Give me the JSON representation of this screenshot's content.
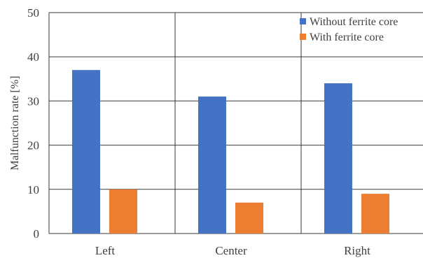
{
  "chart_data": {
    "type": "bar",
    "categories": [
      "Left",
      "Center",
      "Right"
    ],
    "series": [
      {
        "name": "Without ferrite core",
        "values": [
          37,
          31,
          34
        ],
        "color": "#4472C4"
      },
      {
        "name": "With ferrite core",
        "values": [
          10,
          7,
          9
        ],
        "color": "#ED7D31"
      }
    ],
    "title": "",
    "xlabel": "",
    "ylabel": "Malfunction rate [%]",
    "ylim": [
      0,
      50
    ],
    "yticks": [
      "0",
      "10",
      "20",
      "30",
      "40",
      "50"
    ],
    "grid": true,
    "legend_position": "top-right"
  }
}
